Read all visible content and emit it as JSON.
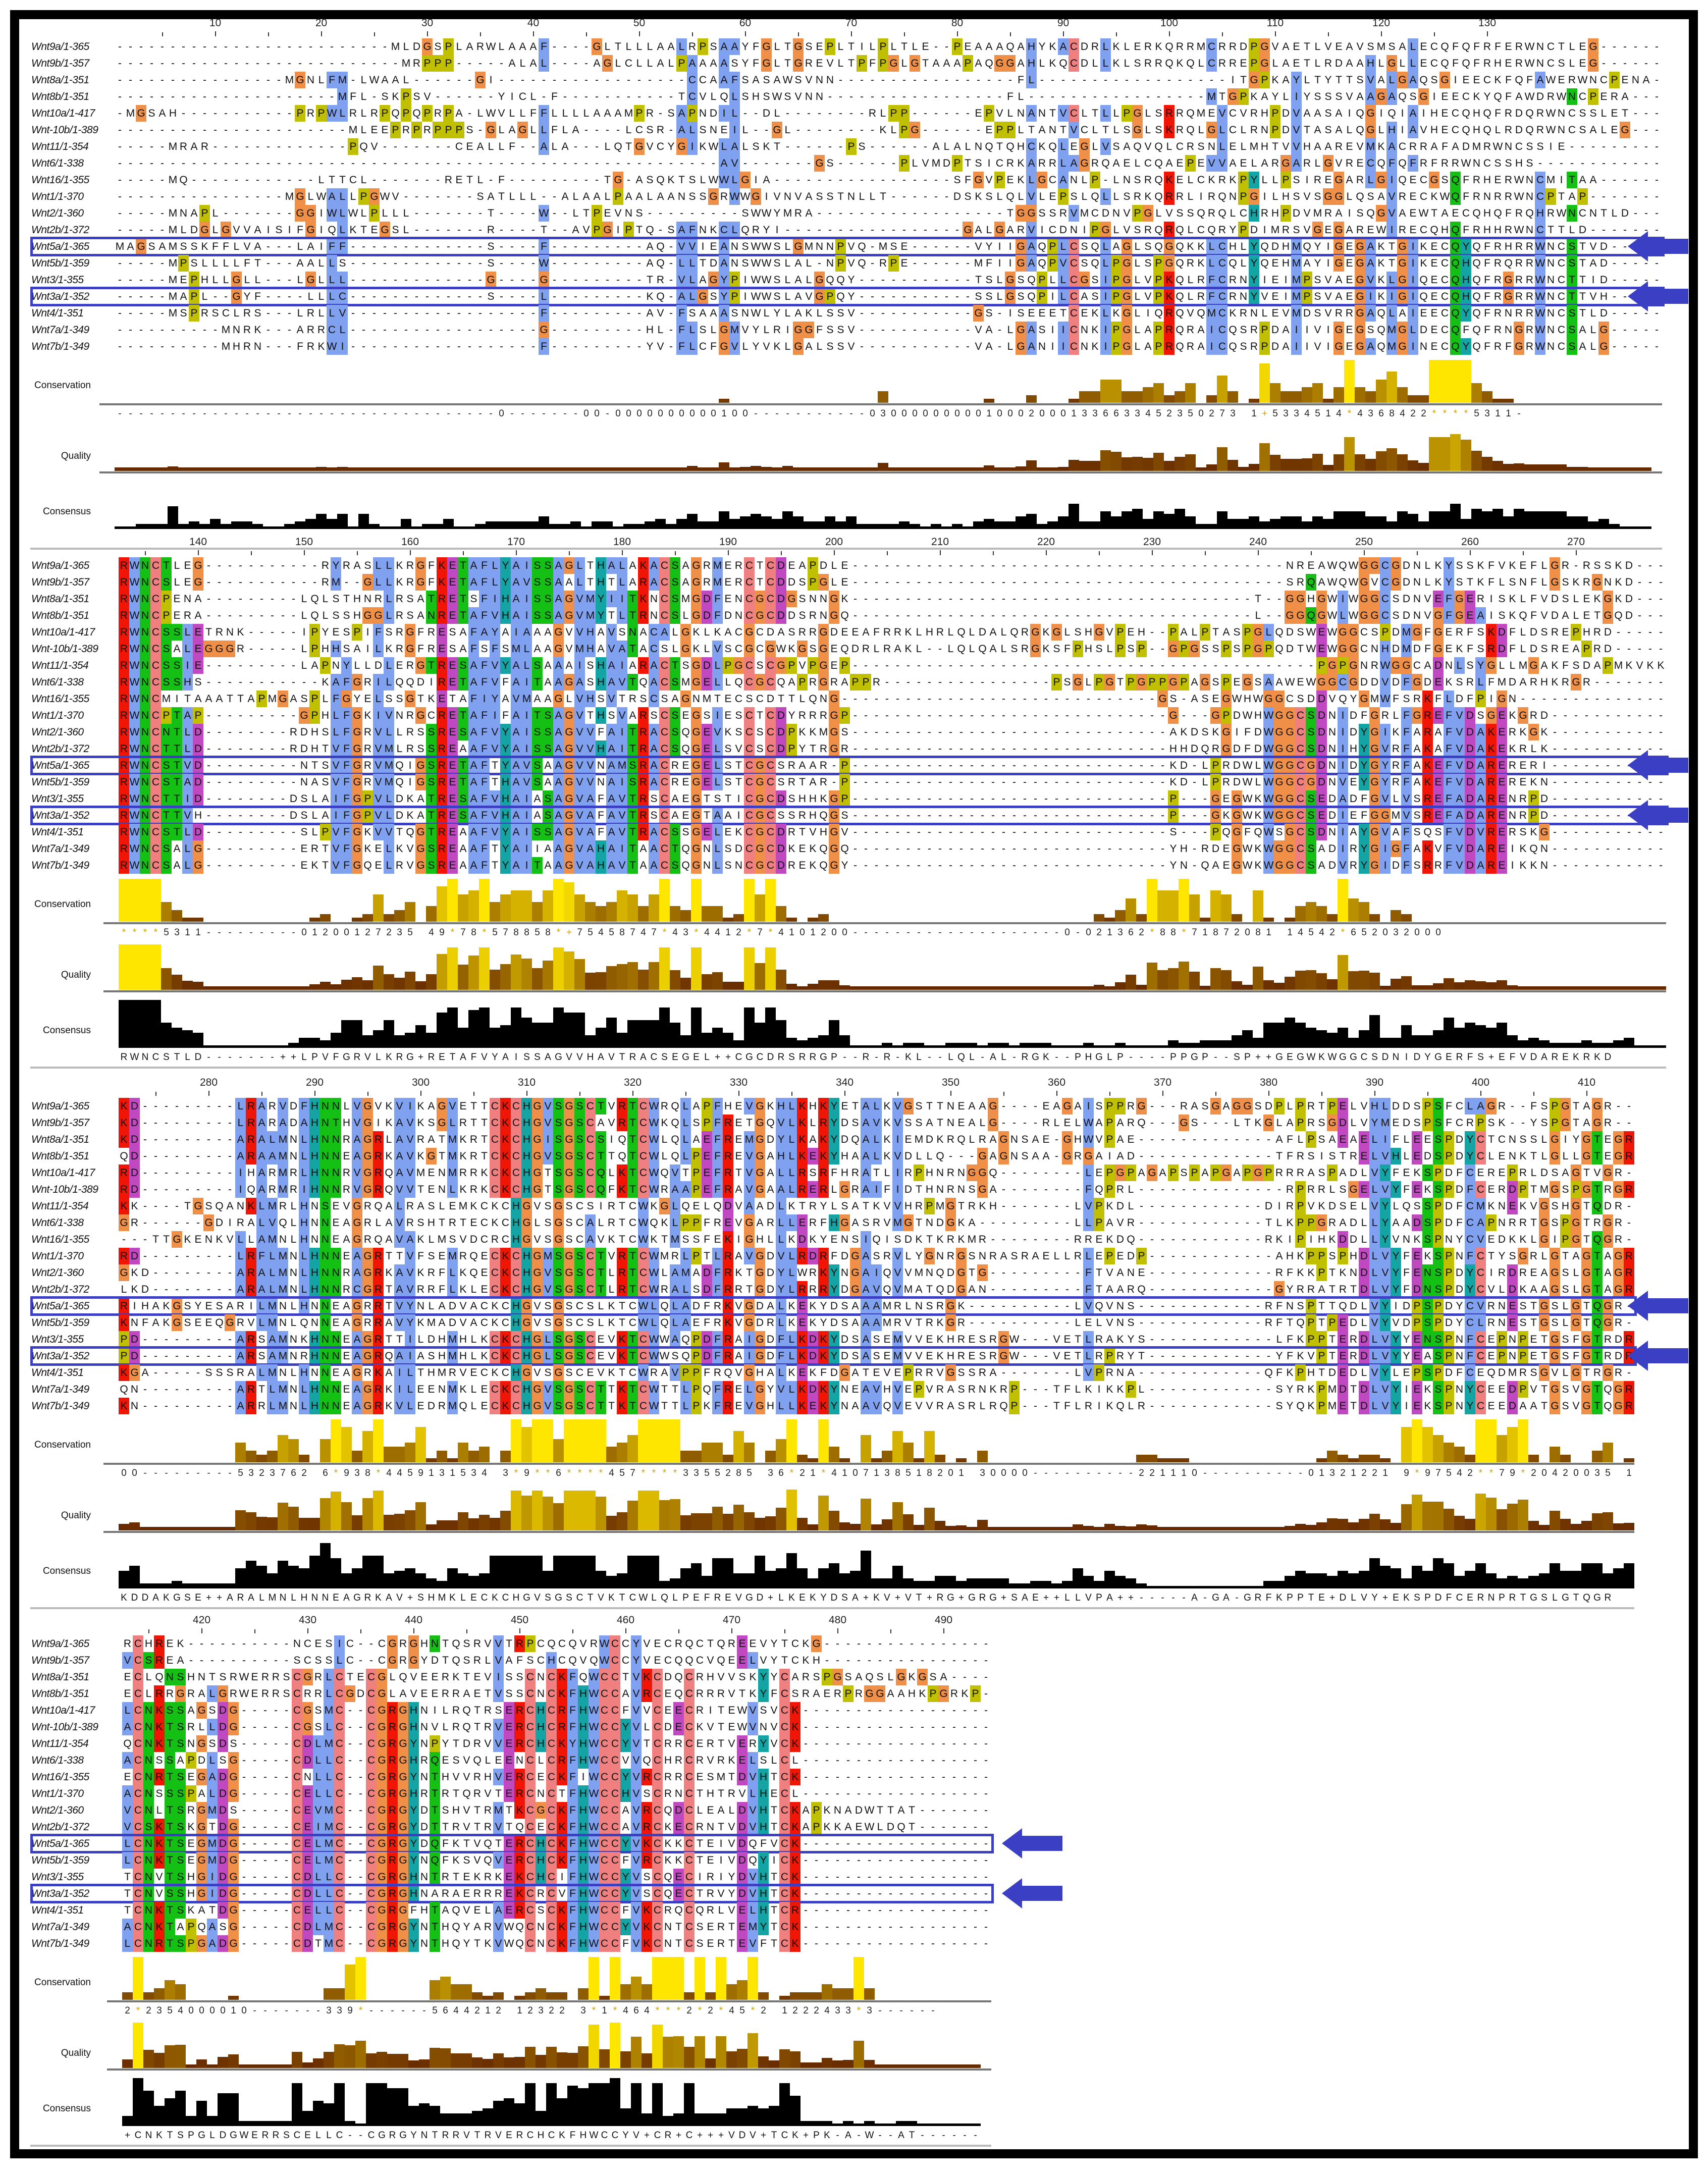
{
  "sequences": {
    "names": [
      "Wnt9a/1-365",
      "Wnt9b/1-357",
      "Wnt8a/1-351",
      "Wnt8b/1-351",
      "Wnt10a/1-417",
      "Wnt-10b/1-389",
      "Wnt11/1-354",
      "Wnt6/1-338",
      "Wnt16/1-355",
      "Wnt1/1-370",
      "Wnt2/1-360",
      "Wnt2b/1-372",
      "Wnt5a/1-365",
      "Wnt5b/1-359",
      "Wnt3/1-355",
      "Wnt3a/1-352",
      "Wnt4/1-351",
      "Wnt7a/1-349",
      "Wnt7b/1-349"
    ],
    "highlighted": [
      "Wnt5a/1-365",
      "Wnt3a/1-352"
    ]
  },
  "annotation_labels": {
    "conservation": "Conservation",
    "quality": "Quality",
    "consensus": "Consensus"
  },
  "colors": {
    "highlight_box": "#3b3fc4",
    "arrow": "#3b3fc4",
    "hydrophobic": "#80a0f0",
    "positive": "#f01505",
    "negative": "#c048c0",
    "polar": "#15c015",
    "glycine": "#f09048",
    "proline": "#c0c000",
    "cysteine": "#f08080",
    "aromatic": "#15a4a4"
  },
  "blocks": [
    {
      "first_column": 1,
      "ruler": [
        10,
        20,
        30,
        40,
        50,
        60,
        70,
        80,
        90,
        100,
        110,
        120,
        130
      ],
      "rows": [
        "--------------------------MLDGSPLARWLAAAF----GLTLLLAALRPSAAYFGLTGSEPLTILPLTLE--PEAAAQAHYKACDRLKLERKQRRMCRRDPGVAETLVEAVSMSALECQFQFRFERWNCTLEG-",
        "---------------------------MRPPP-----ALAL----AGLCLLALPAAAASYFGLTGREVLTPFPGLGTAAAPAQGGAHLKQCDLLKLSRRQKQLCRREPGLAETLRDAAHLGLLECQFQFRHERWNCSLEG-",
        "----------------MGNLFM-LWAAL------GI------------------CCAAFSASAWSVNN-----------------FL------------------ITGPKAYLTYTTSVALGAQSGIEECKFQFAWERWNCPENA-",
        "---------------------MFL-SKPSV------YICL-F-----------TCVLQLSHSWSVNN-----------------FL-----------------MTGPKAYLIYSSSVAAGAQSGIEECKYQFAWDRWNCPERA-",
        "-MGSAH-----------PRPWLRLRPQPQPRPA-LWVLLFFLLLLAAAMPR-SAPNDIL--DL--------RLPP------EPVLNANTVCLTLLPGLSRRQMEVCVRHPDVAASAIQGIQIAIHECQHQFRDQRWNCSSLET",
        "----------------------MLEEPRPRPPPS-GLAGLLFLA----LCSR-ALSNEIL--GL--------KLPG------EPPLTANTVCLTLSGLSKRQLGLCLRNPDVTASALQGLHIAVHECQHQLRDQRWNCSALEG",
        "-----MRAR-------------PQV-------CEALLF--ALA---LQTGVCYGIKWLALSKT------PS------ALALNQTQHCKQLEGLVSAQVQLCRSNLELMHTVVHAAREVMKACRRAFADMRWNCSSIE-",
        "---------------------------------------------------------AV-------GS------PLVMDPTSICRKARRLAGRQAELCQAEPEVVAELARGARLGVRECQFQFRFRRWNCSSHS-",
        "-----MQ------------LTTCL-------RETL-F---------TG-ASQKTSLWWLGIA-----------------SFGVPEKLGCANLP-LNSRQKELCKRKPYLLPSIREGARLGIQECGSQFRHERWNCMITAA",
        "----------------MGLWALLPGWV-------SATLLL--ALAALPAALAANSSGRWWGIVNVASSTNLLT------DSKSLQLVLEPSLQLLSRKQRRLIRQNPGILHSVSGGLQSAVRECKWQFRNRRWNCPTAP-",
        "-----MNAPL-------GGIWLWLPLLL-------T----W--LTPEVNS---------SWWYMRA------------------TGGSSRVMCDNVPGLVSSQRQLCHRHPDVMRAISQGVAEWTAECQHQFRQHRWNCNTLD-",
        "-----MLDGLGVVAISIFGIQLKTEGSL-------R----T--AVPGIPTQ-SAFNKCLQRYI-----------------GALGARVICDNIPGLVSRQRQLCQRYPDIMRSVGEGAREWIRECQHQFRHHRWNCTTLD-",
        "MAGSAMSSKFFLVA---LAIFF-------------S----F---------AQ-VVIEANSWWSLGMNNPVQ-MSE------VYIIGAQPLCSQLAGLSQGQKKLCHLYQDHMQYIGEGAKTGIKECQYQFRHRRWNCSTVD-",
        "-----MPSLLLLFT---AALLS-------------S----W---------AQ-LLTDANSWWSLAL-NPVQ-RPE------MFIIGAQPVCSQLPGLSPGQRKLCQLYQEHMAYIGEGAKTGIKECQHQFRQRRWNCSTAD-",
        "-----MEPHLLGLL---LGLLL-------------G----G---------TR-VLAGYPIWWSLALGQQY-----------TSLGSQPLLCGSIPGLVPKQLRFCRNYIEIMPSVAEGVKLGIQECQHQFRGRRWNCTTID-",
        "-----MAPL--GYF----LLLC-------------S----L---------KQ-ALGSYPIWWSLAVGPQY-----------SSLGSQPILCASIPGLVPKQLRFCRNYVEIMPSVAEGIKIGIQECQHQFRGRRWNCTTVH-",
        "-----MSPRSCLRS---LRLLV------------------F---------AV-FSAAASNWLYLAKLSSV-----------GS-ISEEETCEKLKGLIQRQVQMCKRNLEVMDSVRRGAQLAIEECQYQFRNRRWNCSTLD-",
        "----------MNRK---ARRCL------------------G---------HL-FLSLGMVYLRIGGFSSV-----------VA-LGASIICNKIPGLAPRQRAICQSRPDAIIVIGEGSQMGLDECQFQFRNGRWNCSALG-",
        "----------MHRN---FRKWI------------------F---------YV-FLCFGVLYVKLGALSSV-----------VA-LGANIICNKIPGLAPRQRAICQSRPDAIIVIGEGAQMGINECQYQFRFGRWNCSALG-"
      ],
      "conservation": "------------------------------------0-------00-0000000000100-----------03000000000100020001336633452350273 1+5334514*4368422****5311-",
      "consensus_text": ""
    },
    {
      "first_column": 133,
      "ruler": [
        140,
        150,
        160,
        170,
        180,
        190,
        200,
        210,
        220,
        230,
        240,
        250,
        260,
        270
      ],
      "rows": [
        "RWNCTLEG-----------RYRASLLKRGFKETAFLYAISSAGLTHALAKACSAGRMERCTCDEAPDLE-----------------------------------------NREAWQWGGCGDNLKYSSKFVKEFLGR-RSSKD",
        "RWNCSLEG-----------RM--GLLKRGFKETAFLYAVSSAALTHTLARACSAGRMERCTCDDSPGLE-----------------------------------------SRQAWQWGVCGDNLKYSTKFLSNFLGSKRGNKD",
        "RWNCPENA---------LQLSTHNRLRSATRETSFIHAISSAGVMYIITKNCSMGDFENCGCDGSNNGK--------------------------------------T--GGHGWIWGGCSDNVEFGERISKLFVDSLEKGKD",
        "RWNCPERA---------LQLSSHGGLRSANRETAFVHAISSAGVMYTLTRNCSLGDFDNCGCDDSRNGQ--------------------------------------L--GGQGWLWGGCSDNVGFGEAISKQFVDALETGQD",
        "RWNCSSLETRNK-----IPYESPIFSRGFRESAFAYAIAAAGVVHAVSNACALGKLKACGCDASRRGDEEAFRRKLHRLQLDALQRGKGLSHGVPEH--PALPTASPGLQDSWEWGGCSPDMGFGERFSKDFLDSREPHRD",
        "RWNCSALEGGGR-----LPHHSAILKRGFRESAFSFSMLAAGVMHAVATACSLGKLVSCGCGWKGSGEQDRLRAKL--LQLQALSRGKSFPHSLPSP--GPGSSPSPGPQDTWEWGGCNHDMDFGEKFSRDFLDSREAPRD",
        "RWNCSSIE---------LAPNYLLDLERGTRESAFVYALSAAAISHAIARACTSGDLPGCSCGPVPGEP--------------------------------------------PGPGNRWGGCADNLSYGLLMGAKFSDAPMKVKK",
        "RWNCSSHS-----------KAFGRILQQDIRETAFVFAITAAGASHAVTQACSMGELLQCGCQAPRGRAPPR----------------PSGLPGTPGPPGPAGSPEGSAAWEWGGCGDDVDFGDEKSRLFMDARHKRGR",
        "RWNCMITAAATTAPMGASPLFGYELSSGTKETAFIYAVMAAGLVHSVTRSCSAGNMTECSCDTTLQNG------------------------------GS-ASEGWHWGGCSDDVQYGMWFSRKFLDFPIGN--",
        "RWNCPTAP---------GPHLFGKIVNRGCRETAFIFAITSAGVTHSVARSCSEGSIESCTCDYRRRGP------------------------------G---GPDWHWGGCSDNIDFGRLFGREFVDSGEKGRD",
        "RWNCNTLD--------RDHSLFGRVLLRSSRESAFVYAISSAGVVFAITRACSQGEVKSCSCDPKKMGS------------------------------AKDSKGIFDWGGCSDNIDYGIKFARAFVDAKERKGK",
        "RWNCTTLD--------RDHTVFGRVMLRSSREAAFVYAISSAGVVHAITRACSQGELSVCSCDPYTRGR------------------------------HHDQRGDFDWGGCSDNIHYGVRFAKAFVDAKEKRLK",
        "RWNCSTVD---------NTSVFGRVMQIGSRETAFTYAVSAAGVVNAMSRACREGELSTCGCSRAAR-P------------------------------KD-LPRDWLWGGCGDNIDYGYRFAKEFVDARERERI",
        "RWNCSTAD---------NASVFGRVMQIGSRETAFTHAVSAAGVVNAISRACREGELSTCGCSRTAR-P------------------------------KD-LPRDWLWGGCGDNVEYGYRFAKEFVDAREREKN",
        "RWNCTTID--------DSLAIFGPVLDKATRESAFVHAIASAGVAFAVTRSCAEGTSTICGCDSHHKGP------------------------------P---GEGWKWGGCSEDADFGVLVSREFADARENRPD",
        "RWNCTTVH--------DSLAIFGPVLDKATRESAFVHAIASAGVAFAVTRSCAEGTAAICGCSSRHQGS------------------------------P---GKGWKWGGCSEDIEFGGMVSREFADARENRPD",
        "RWNCSTLD---------SLPVFGKVVTQGTREAAFVYAISSAGVAFAVTRACSSGELEKCGCDRTVHGV------------------------------S---PQGFQWSGCSDNIAYGVAFSQSFVDVRERSKG",
        "RWNCSALG---------ERTVFGKELKVGSREAAFTYAIIAAGVAHAITAACTQGNLSDCGCDKEKQGQ------------------------------YH-RDEGWKWGGCSADIRYGIGFAKVFVDAREIKQN",
        "RWNCSALG---------EKTVFGQELRVGSREAAFTYAITAAGVAHAVTAACSQGNLSNCGCDREKQGY------------------------------YN-QAEGWKWGGCSADVRYGIDFSRRFVDAREIKKN"
      ],
      "conservation": "****5311---------01200127235 49*78*578858*+75458747*43*4412*7*4101200--------------------0-021362*88*71872081 14542*652032000",
      "consensus_text": "RWNCSTLD-------++LPVFGRVLKRG+RETAFVYAISSAGVVHAVTRACSEGEL++CGCDRSRRGP--R-R-KL--LQL-AL-RGK--PHGLP----PPGP--SP++GEGWKWGGCSDNIDYGERFS+EFVDAREKRKD"
    },
    {
      "first_column": 272,
      "ruler": [
        280,
        290,
        300,
        310,
        320,
        330,
        340,
        350,
        360,
        370,
        380,
        390,
        400,
        410
      ],
      "rows": [
        "KD---------LRARVDFHNNLVGVKVIKAGVETTCKCHGVSGSCTVRTCWRQLAPFHEVGKHLKHKYETALKVGSTTNEAAG----EAGAISPPRG---RASGAGGSDPLPRTPELVHLDDSPSFCLAGR--FSPGTAGR",
        "KD---------LRARADAHNTHVGIKAVKSGLRTTCKCHGVSGSCAVRTCWKQLSPFRETGQVLKLRYDSAVKVSSATNEALG----RLELWAPARQ---GS---LTKGLAPRSGDLVYMEDSPSFCRPSK--YSPGTAGR",
        "KD---------ARALMNLHNNRAGRLAVRATMKRTCKCHGISGSCSIQTCWLQLAEFREMGDYLKAKYDQALKIEMDKRQLRAGNSAE-GHWVPAE-------------AFLPSAEAELIFLEESPDYCTCNSSLGIYGTEGR",
        "QD---------ARAAMNLHNNEAGRKAVKGTMKRTCKCHGVSGSCTTQTCWLQLPEFREVGAHLKEKYHAALKVDLLQ---GAGNSAA-GRGAIAD-------------TFRSISTRELVHLEDSPDYCLENKTLGLLGTEGR",
        "RD---------IHARMRLHNNRVGRQAVMENMRRKCKCHGTSGSCQLKTCWQVTPEFRTVGALLRSRFHRATLIRPHNRNGGQ--------LEPGPAGAPSPAPGAPGPRRRASPADLVYFEKSPDFCEREPRLDSAGTVGR",
        "RD---------IQARMRIHNNRVGRQVVTENLKRKCKCHGTSGSCQFKTCWRAAPEFRAVGAALRERLGRAIFIDTHNRNSGA--------FQPRL--------------RPRRLSGELVYFEKSPDFCERDPTMGSPGTRGR",
        "KK----TGSQANKLMRLHNSEVGRQALRASLEMKCKCHGVSGSCSIRTCWKGLQELQDVAADLKTRYLSATKVVHRPMGTRKH-------LVPKDL------------DIRPVKDSELVYLQSSPDFCMKNEKVGSHGTQDR",
        "GR------GDIRALVQLHNNEAGRLAVRSHTRTECKCHGLSGSCALRTCWQKLPPFREVGARLLERFHGASRVMGTNDGKA---------LLPAVR------------TLKPPGRADLLYAADSPDFCAPNRRTGSPGTRGR",
        "---TTGKENKVLLAMNLHNNEAGRQAVAKLMSVDCRCHGVSGSCAVKTCWKTMSSFEKIGHLLKDKYENSIQISDKTKRKMR--------RREKDQ------------RKIPIHKDDLLYVNKSPNYCVEDKKLGIPGTQGR",
        "RD---------LRFLMNLHNNEAGRTTVFSEMRQECKCHGMSGSCTVRTCWMRLPTLRAVGDVLRDRFDGASRVLYGNRGSNRASRAELLRLEPEDP------------AHKPPSPHDLVYFEKSPNFCTYSGRLGTAGTAGR",
        "GKD--------ARALMNLHNNRAGRKAVKRFLKQECKCHGVSGSCTLRTCWLAMADFRKTGDYLWRKYNGAIQVVMNQDGTG---------FTVANE------------RFKKPTKNDLVYFENSPDYCIRDREAGSLGTAGR",
        "LKD--------ARALMNLHNNRCGRTAVRRFLKLECKCHGVSGSCTLRTCWRALSDFRRTGDYLRRRYDGAVQVMATQDGAN---------FTAARQ------------GYRRATRTDLVYFDNSPDYCVLDKAAGSLGTAGR",
        "RIHAKGSYESARILMNLHNNEAGRRTVYNLADVACKCHGVSGSCSLKTCWLQLADFRKVGDALKEKYDSAAAMRLNSRGK----------LVQVNS------------RFNSPTTQDLVYIDPSPDYCVRNESTGSLGTQGR",
        "KNFAKGSEEQGRVLMNLQNNEAGRRAVYKMADVACKCHGVSGSCSLKTCWLQLAEFRKVGDRLKEKYDSAAAMRVTRKGR----------LELVNS------------RFTQPTPEDLVYVDPSPDYCLRNESTGSLGTQGR",
        "PD---------ARSAMNKHNNEAGRTTILDHMHLKCKCHGLSGSCEVKTCWWAQPDFRAIGDFLKDKYDSASEMVVEKHRESRGW---VETLRAKYS------------LFKPPTERDLVYYENSPNFCEPNPETGSFGTRDR",
        "PD---------ARSAMNRHNNEAGRQAIASHMHLKCKCHGLSGSCEVKTCWWSQPDFRAIGDFLKDKYDSASEMVVEKHRESRGW---VETLRPRYT------------YFKVPTERDLVYYEASPNFCEPNPETGSFGTRDR",
        "KGA-----SSSRALMNLHNNEAGRKAILTHMRVECKCHGVSGSCEVKTCWRAVPPFRQVGHALKEKFDGATEVEPRRVGSSRA-------LVPRNA------------QFKPHTDEDLVYLEPSPDFCEQDMRSGVLGTRGR",
        "QN---------ARTLMNLHNNEAGRKILEENMKLECKCHGVSGSCTTKTCWTTLPQFRELGYVLKDKYNEAVHVEPVRASRNKRP---TFLKIKKPL------------SYRKPMDTDLVYIEKSPNYCEEDPVTGSVGTQGR",
        "KN---------ARRLMNLHNNEAGRKVLEDRMQLECKCHGVSGSCTTKTCWTTLPKFREVGHLLKEKYNAAVQVEVVRASRLRQP---TFLRIKQLR------------SYQKPMETDLVYIEKSPNYCEEDAATGSVGTQGR"
      ],
      "conservation": "00---------5323762 6*938*4459131534 3*9**6****457****3355285 36*21*4107138518201 30000----------221110----------01321221 9*97542**79*20420035 1***25*",
      "consensus_text": "KDDAKGSE++ARALMNLHNNEAGRKAV+SHMKLECKCHGVSGSCTVKTCWLQLPEFREVGD+LKEKYDSA+KV+VT+RG+GRG+SAE++LLVPA++-----A-GA-GRFKPPTE+DLVY+EKSPDFCERNPRTGSLGTQGR"
    },
    {
      "first_column": 413,
      "ruler": [
        420,
        430,
        440,
        450,
        460,
        470,
        480,
        490
      ],
      "rows": [
        "RCHREK----------NCESIC--CGRGHNTQSRVVTRPCQCQVRWCCYVECRQCTQREEVYTCKG----------------",
        "VCSREA----------SCSSLC--CGRGYDTQSRLVAFSCHCQVQWCCYVECQQCVQEELVYTCKH----------------",
        "ECLQNSHNTSRWERRSCGRLCTECGLQVEERKTEVISSCNCKFQWCCTVKCDQCRHVVSKYYCARSPGSAQSLGKGSA---",
        "ECLRRGRALGRWERRSCRRLCGDCGLAVEERRAETVSSCNCKFHWCCAVRCEQCRRRVTKYFCSRAERPRGGAAHKPGRKP",
        "LCNKSSAGSDG-----CGSMC--CGRGHNILRQTRSERCHCRFHWCCFVVCEECRITEWVSVCK-----------------",
        "ACNKTSRLLDG-----CGSLC--CGRGHNVLRQTRVERCHCRFHWCCYVLCDECKVTEWVNVCK-----------------",
        "QCNKTSNGSDS-----CDLMC--CGRGYNPYTDRVVERCHCKYHWCCYVTCRRCERTVERYVCK-----------------",
        "ACNSSAPDLSG-----CDLLC--CGRGHRQESVQLEENCLCRFHWCCVVQCHRCRVRKELSLCL-----------------",
        "ECNRTSEGADG-----CNLLC--CGRGYNTHVVRHVERCECKFIWCCYVRCRRCESMTDVHTCK-----------------",
        "ACNSSSPALDG-----CELLC--CGRGHRTRTQRVTERCNCTFHWCCHVSCRNCTHTRVLHECL-----------------",
        "VCNLTSRGMDS-----CEVMC--CGRGYDTSHVTRMTKCGCKFHWCCAVRCQDCLEALDVHTCKAPKNADWTTAT------",
        "VCSKTSKGTDG-----CEIMC--CGRGYDTTRVTRVTQCECKFHWCCAVRCKECRNTVDVHTCKAPKKAEWLDQT------",
        "LCNKTSEGMDG-----CELMC--CGRGYDQFKTVQTERCHCKFHWCCYVKCKKCTEIVDQFVCK-----------------",
        "LCNKTSEGMDG-----CELMC--CGRGYNQFKSVQVERCHCKFHWCCFVRCKKCTEIVDQYICK-----------------",
        "TCNVTSHGIDG-----CDLLC--CGRGHNTRTEKRKEKCHCIFHWCCYVSCQECIRIYDVHTCK-----------------",
        "TCNVSSHGIDG-----CDLLC--CGRGHNARAERRREKCRCVFHWCCYVSCQECTRVYDVHTCK-----------------",
        "TCNKTSKATDG-----CELLC--CGRGFHTAQVELAERCSCKFHWCCFVKCRQCQRLVELHTCR-----------------",
        "ACNKTAPQASG-----CDLMC--CGRGYNTHQYARVWQCNCKFHWCCYVKCNTCSERTEMYTCK-----------------",
        "LCNRTSPGADG-----CDTMC--CGRGYNTHQYTKVWQCNCKFHWCCFVKCNTCSERTEVFTCK-----------------"
      ],
      "conservation": "2*2354000010-------339*------5644212 12322 3*1*464***2*2*45*2 1222433*3------",
      "consensus_text": "+CNKTSPGLDGWERRSCELLC--CGRGYNTRRVTRVERCHCKFHWCCYV+CR+C+++VDV+TCK+PK-A-W--AT------"
    }
  ]
}
